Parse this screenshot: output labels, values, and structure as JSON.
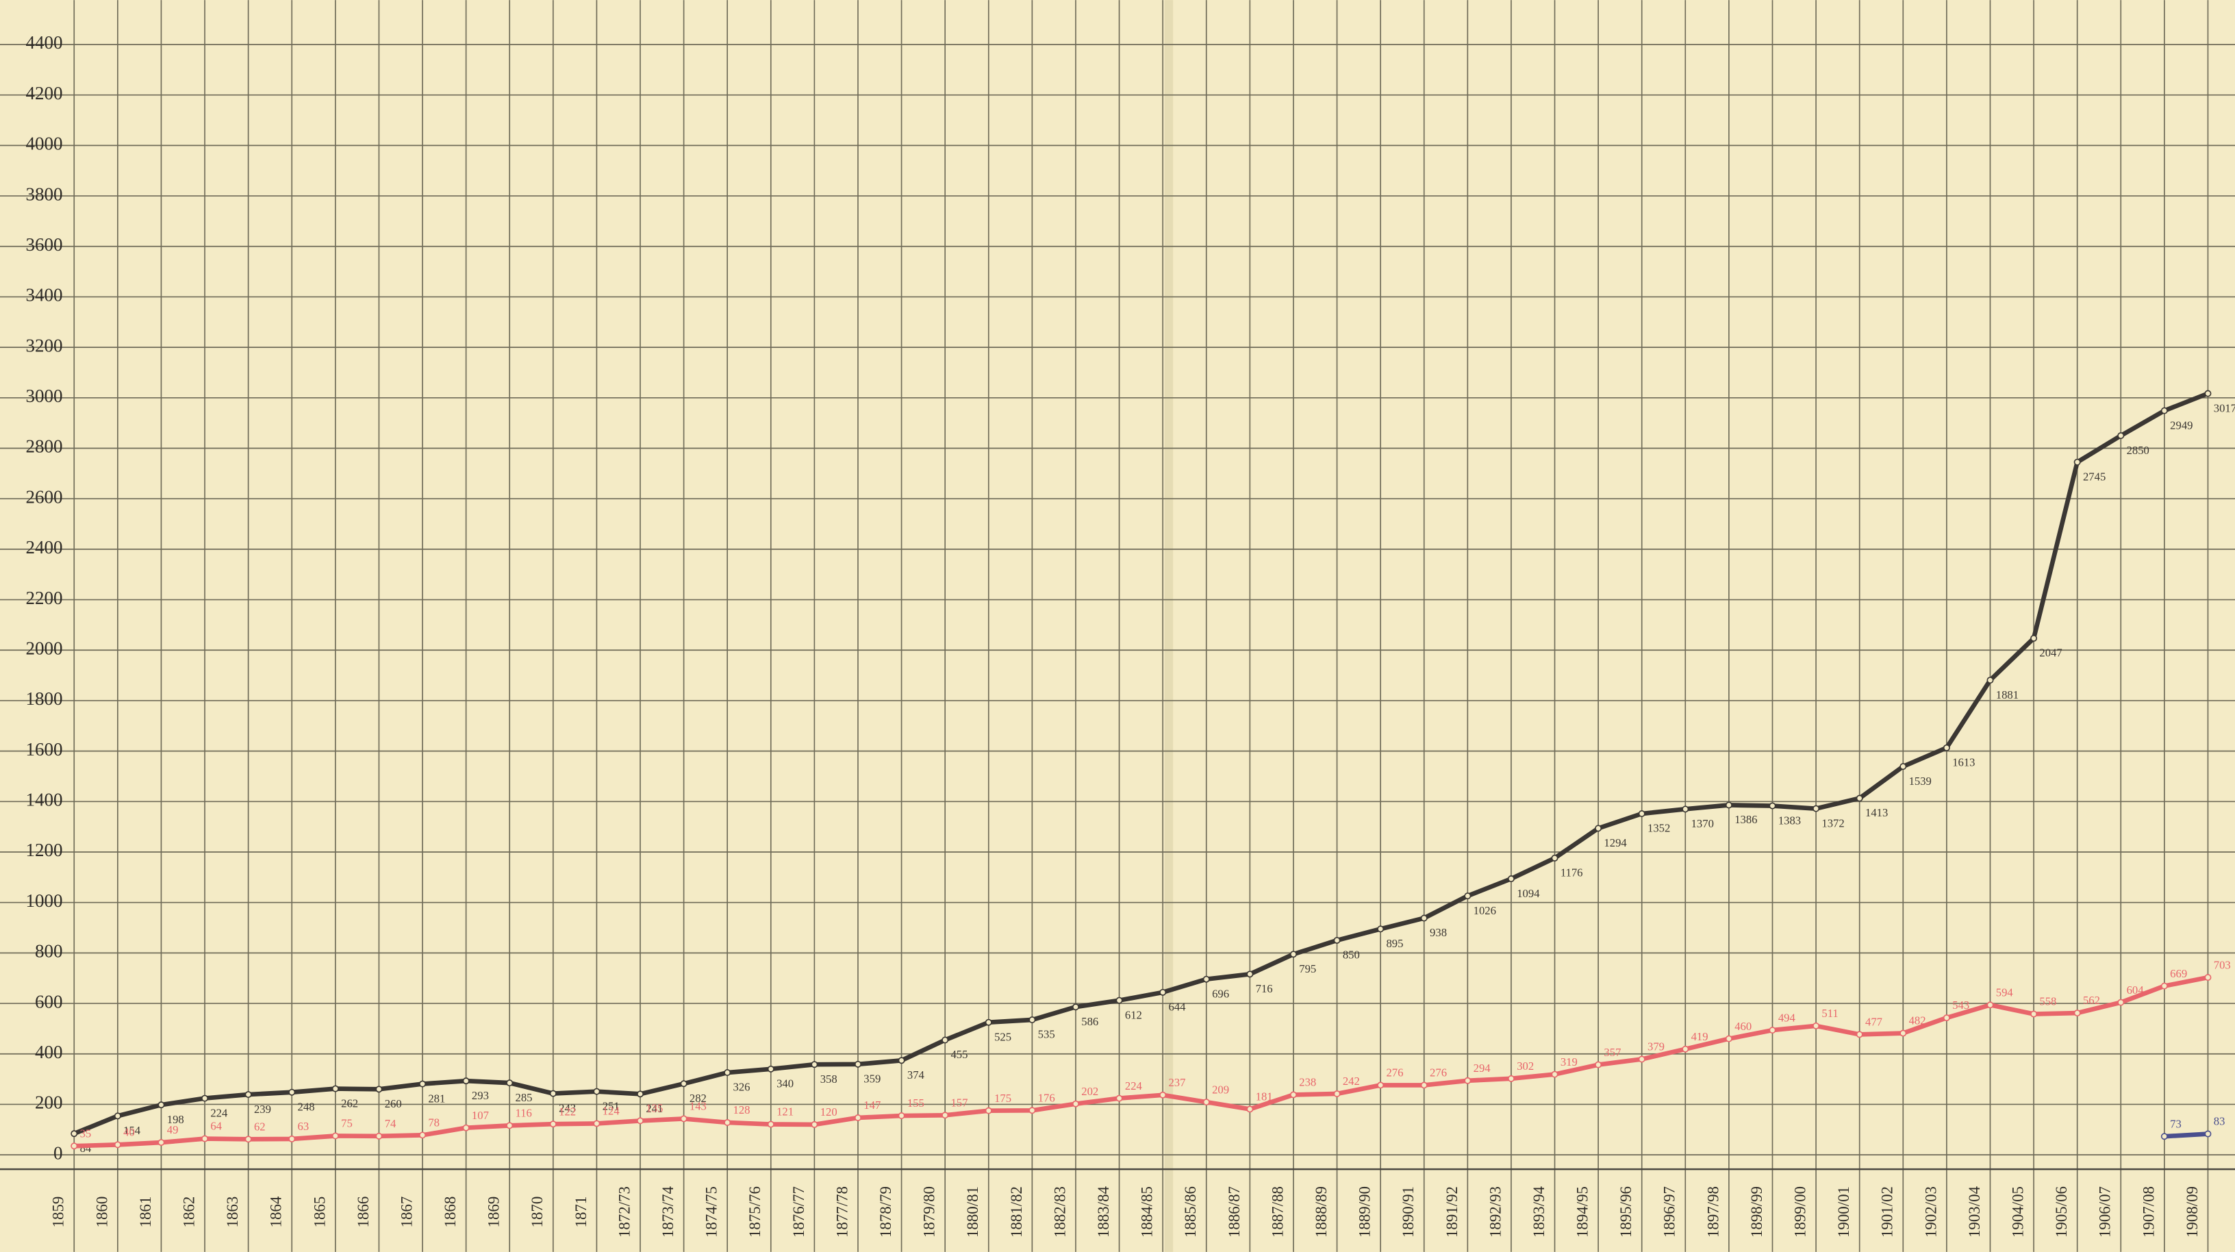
{
  "chart_data": {
    "type": "line",
    "categories": [
      "1859",
      "1860",
      "1861",
      "1862",
      "1863",
      "1864",
      "1865",
      "1866",
      "1867",
      "1868",
      "1869",
      "1870",
      "1871",
      "1872/73",
      "1873/74",
      "1874/75",
      "1875/76",
      "1876/77",
      "1877/78",
      "1878/79",
      "1879/80",
      "1880/81",
      "1881/82",
      "1882/83",
      "1883/84",
      "1884/85",
      "1885/86",
      "1886/87",
      "1887/88",
      "1888/89",
      "1889/90",
      "1890/91",
      "1891/92",
      "1892/93",
      "1893/94",
      "1894/95",
      "1895/96",
      "1896/97",
      "1897/98",
      "1898/99",
      "1899/00",
      "1900/01",
      "1901/02",
      "1902/03",
      "1903/04",
      "1904/05",
      "1905/06",
      "1906/07",
      "1907/08",
      "1908/09"
    ],
    "series": [
      {
        "color": "#3b3733",
        "values": [
          84,
          154,
          198,
          224,
          239,
          248,
          262,
          260,
          281,
          293,
          285,
          243,
          251,
          241,
          282,
          326,
          340,
          358,
          359,
          374,
          455,
          525,
          535,
          586,
          612,
          644,
          696,
          716,
          795,
          850,
          895,
          938,
          1026,
          1094,
          1176,
          1294,
          1352,
          1370,
          1386,
          1383,
          1372,
          1413,
          1539,
          1613,
          1881,
          2047,
          2745,
          2850,
          2949,
          3017
        ]
      },
      {
        "color": "#e8656b",
        "values": [
          35,
          40,
          49,
          64,
          62,
          63,
          75,
          74,
          78,
          107,
          116,
          122,
          124,
          135,
          143,
          128,
          121,
          120,
          147,
          155,
          157,
          175,
          176,
          202,
          224,
          237,
          209,
          181,
          238,
          242,
          276,
          276,
          294,
          302,
          319,
          357,
          379,
          419,
          460,
          494,
          511,
          477,
          482,
          543,
          594,
          558,
          562,
          604,
          669,
          703
        ]
      },
      {
        "color": "#4a4f8e",
        "values": [
          null,
          null,
          null,
          null,
          null,
          null,
          null,
          null,
          null,
          null,
          null,
          null,
          null,
          null,
          null,
          null,
          null,
          null,
          null,
          null,
          null,
          null,
          null,
          null,
          null,
          null,
          null,
          null,
          null,
          null,
          null,
          null,
          null,
          null,
          null,
          null,
          null,
          null,
          null,
          null,
          null,
          null,
          null,
          null,
          null,
          null,
          null,
          null,
          73,
          83
        ]
      }
    ],
    "ylim": [
      -40,
      4576
    ],
    "yticks": [
      0,
      200,
      400,
      600,
      800,
      1000,
      1200,
      1400,
      1600,
      1800,
      2000,
      2200,
      2400,
      2600,
      2800,
      3000,
      3200,
      3400,
      3600,
      3800,
      4000,
      4200,
      4400
    ],
    "grid": true
  }
}
